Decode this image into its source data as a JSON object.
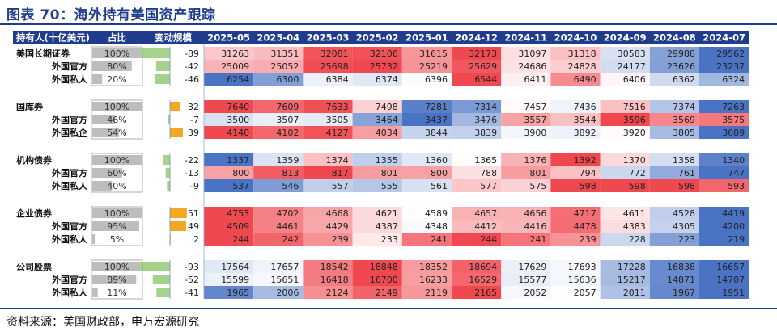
{
  "title": "图表 70：海外持有美国资产跟踪",
  "source": "资料来源：美国财政部，申万宏源研究",
  "colors": {
    "header_bg": "#1f3d8c",
    "low": "#4a73c4",
    "mid": "#ffffff",
    "high": "#f0484f",
    "share_bar": "#bdbdbd",
    "pos_bar": "#f5a623",
    "neg_bar": "#a6d38b"
  },
  "chart_data": {
    "type": "table",
    "columns": [
      "持有人(十亿美元)",
      "占比",
      "变动规模",
      "2025-05",
      "2025-04",
      "2025-03",
      "2025-02",
      "2025-01",
      "2024-12",
      "2024-11",
      "2024-10",
      "2024-09",
      "2024-08",
      "2024-07"
    ],
    "share_max": 100,
    "change_max": 93,
    "groups": [
      {
        "rows": [
          {
            "label": "美国长期证券",
            "share": "100%",
            "share_value": 100,
            "change": -89,
            "values": [
              31263,
              31351,
              32081,
              32106,
              31615,
              32173,
              31097,
              31318,
              30583,
              29988,
              29562
            ]
          },
          {
            "label": "外国官方",
            "share": "80%",
            "share_value": 80,
            "change": -42,
            "values": [
              25009,
              25052,
              25698,
              25732,
              25219,
              25629,
              24686,
              24828,
              24177,
              23626,
              23237
            ]
          },
          {
            "label": "外国私人",
            "share": "20%",
            "share_value": 20,
            "change": -46,
            "values": [
              6254,
              6300,
              6384,
              6374,
              6396,
              6544,
              6411,
              6490,
              6406,
              6362,
              6324
            ]
          }
        ]
      },
      {
        "rows": [
          {
            "label": "国库券",
            "share": "100%",
            "share_value": 100,
            "change": 32,
            "values": [
              7640,
              7609,
              7633,
              7498,
              7281,
              7314,
              7457,
              7436,
              7516,
              7374,
              7263
            ]
          },
          {
            "label": "外国官方",
            "share": "46%",
            "share_value": 46,
            "change": -7,
            "values": [
              3500,
              3507,
              3505,
              3464,
              3437,
              3476,
              3557,
              3544,
              3596,
              3569,
              3575
            ]
          },
          {
            "label": "外国私企",
            "share": "54%",
            "share_value": 54,
            "change": 39,
            "values": [
              4140,
              4102,
              4127,
              4034,
              3844,
              3839,
              3900,
              3892,
              3920,
              3805,
              3689
            ]
          }
        ]
      },
      {
        "rows": [
          {
            "label": "机构债券",
            "share": "100%",
            "share_value": 100,
            "change": -22,
            "values": [
              1337,
              1359,
              1374,
              1355,
              1360,
              1365,
              1376,
              1392,
              1370,
              1358,
              1340
            ]
          },
          {
            "label": "外国官方",
            "share": "60%",
            "share_value": 60,
            "change": -13,
            "values": [
              800,
              813,
              817,
              801,
              800,
              788,
              801,
              794,
              772,
              761,
              747
            ]
          },
          {
            "label": "外国私人",
            "share": "40%",
            "share_value": 40,
            "change": -9,
            "values": [
              537,
              546,
              557,
              555,
              561,
              577,
              575,
              598,
              598,
              598,
              593
            ]
          }
        ]
      },
      {
        "rows": [
          {
            "label": "企业债券",
            "share": "100%",
            "share_value": 100,
            "change": 51,
            "values": [
              4753,
              4702,
              4668,
              4621,
              4589,
              4657,
              4656,
              4717,
              4611,
              4528,
              4419
            ]
          },
          {
            "label": "外国官方",
            "share": "95%",
            "share_value": 95,
            "change": 49,
            "values": [
              4509,
              4461,
              4429,
              4387,
              4348,
              4412,
              4416,
              4478,
              4383,
              4305,
              4200
            ]
          },
          {
            "label": "外国私人",
            "share": "5%",
            "share_value": 5,
            "change": 2,
            "values": [
              244,
              242,
              239,
              233,
              241,
              244,
              241,
              239,
              228,
              223,
              219
            ]
          }
        ]
      },
      {
        "rows": [
          {
            "label": "公司股票",
            "share": "100%",
            "share_value": 100,
            "change": -93,
            "values": [
              17564,
              17657,
              18542,
              18848,
              18352,
              18694,
              17629,
              17693,
              17228,
              16838,
              16657
            ]
          },
          {
            "label": "外国官方",
            "share": "89%",
            "share_value": 89,
            "change": -52,
            "values": [
              15599,
              15651,
              16418,
              16700,
              16233,
              16529,
              15577,
              15636,
              15217,
              14871,
              14707
            ]
          },
          {
            "label": "外国私人",
            "share": "11%",
            "share_value": 11,
            "change": -41,
            "values": [
              1965,
              2006,
              2124,
              2149,
              2119,
              2165,
              2052,
              2057,
              2011,
              1967,
              1951
            ]
          }
        ]
      }
    ]
  }
}
